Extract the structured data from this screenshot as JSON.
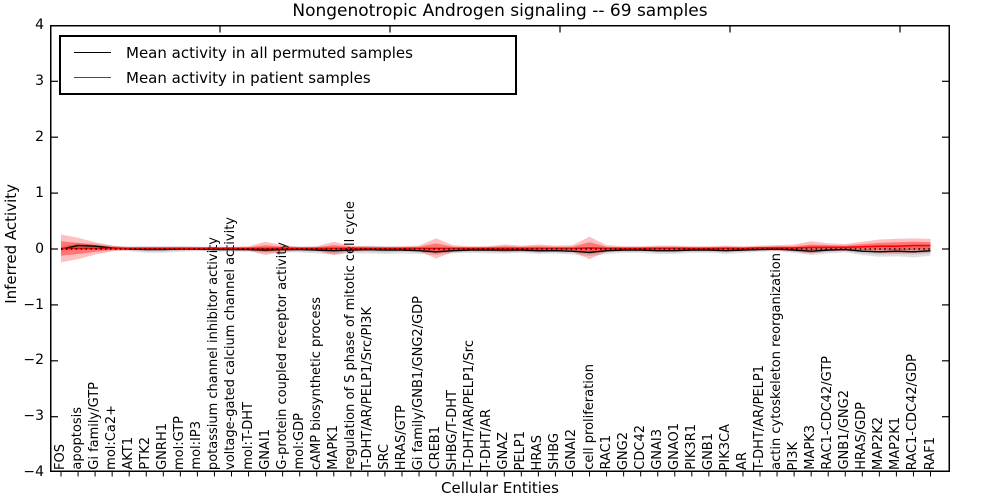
{
  "title": "Nongenotropic Androgen signaling -- 69 samples",
  "axes": {
    "xlabel": "Cellular Entities",
    "ylabel": "Inferred Activity",
    "ytick_labels": [
      "4",
      "3",
      "2",
      "1",
      "0",
      "−1",
      "−2",
      "−3",
      "−4"
    ],
    "ylim": [
      -4,
      4
    ]
  },
  "legend": {
    "entries": [
      {
        "label": "Mean activity in all permuted samples",
        "color": "#000000"
      },
      {
        "label": "Mean activity in patient samples",
        "color": "#ff0000"
      }
    ]
  },
  "colors": {
    "permuted_line": "#000000",
    "patient_line": "#ff0000",
    "zero_line": "#000000",
    "permuted_band_outer": "rgba(0,0,0,0.12)",
    "permuted_band_inner": "rgba(0,0,0,0.11)",
    "patient_band_outer": "rgba(255,0,0,0.25)",
    "patient_band_inner": "rgba(255,0,0,0.38)"
  },
  "chart_data": {
    "type": "line",
    "title": "Nongenotropic Androgen signaling -- 69 samples",
    "xlabel": "Cellular Entities",
    "ylabel": "Inferred Activity",
    "ylim": [
      -4,
      4
    ],
    "grid": false,
    "legend_position": "upper left",
    "zero_line": true,
    "categories": [
      "FOS",
      "apoptosis",
      "Gi family/GTP",
      "mol:Ca2+",
      "AKT1",
      "PTK2",
      "GNRH1",
      "mol:GTP",
      "mol:IP3",
      "potassium channel inhibitor activity",
      "voltage-gated calcium channel activity",
      "mol:T-DHT",
      "GNAI1",
      "G-protein coupled receptor activity",
      "mol:GDP",
      "cAMP biosynthetic process",
      "MAPK1",
      "regulation of S phase of mitotic cell cycle",
      "T-DHT/AR/PELP1/Src/PI3K",
      "SRC",
      "HRAS/GTP",
      "Gi family/GNB1/GNG2/GDP",
      "CREB1",
      "SHBG/T-DHT",
      "T-DHT/AR/PELP1/Src",
      "T-DHT/AR",
      "GNAZ",
      "PELP1",
      "HRAS",
      "SHBG",
      "GNAI2",
      "cell proliferation",
      "RAC1",
      "GNG2",
      "CDC42",
      "GNAI3",
      "GNAO1",
      "PIK3R1",
      "GNB1",
      "PIK3CA",
      "AR",
      "T-DHT/AR/PELP1",
      "actin cytoskeleton reorganization",
      "PI3K",
      "MAPK3",
      "RAC1-CDC42/GTP",
      "GNB1/GNG2",
      "HRAS/GDP",
      "MAP2K2",
      "MAP2K1",
      "RAC1-CDC42/GDP",
      "RAF1"
    ],
    "series": [
      {
        "name": "Mean activity in all permuted samples",
        "color": "#000000",
        "values": [
          0.0,
          0.06,
          0.05,
          0.02,
          0.0,
          -0.01,
          -0.01,
          0.0,
          0.0,
          -0.01,
          -0.01,
          -0.01,
          -0.02,
          -0.01,
          -0.01,
          -0.02,
          -0.03,
          -0.02,
          -0.01,
          -0.02,
          -0.02,
          -0.03,
          -0.05,
          -0.03,
          -0.02,
          -0.02,
          -0.02,
          -0.02,
          -0.03,
          -0.03,
          -0.04,
          -0.06,
          -0.03,
          -0.02,
          -0.02,
          -0.03,
          -0.03,
          -0.02,
          -0.02,
          -0.03,
          -0.02,
          -0.01,
          0.0,
          -0.02,
          -0.04,
          -0.02,
          -0.01,
          -0.04,
          -0.05,
          -0.04,
          -0.05,
          -0.03
        ],
        "band_outer_halfwidth": [
          0.04,
          0.05,
          0.05,
          0.04,
          0.04,
          0.06,
          0.06,
          0.05,
          0.04,
          0.04,
          0.04,
          0.04,
          0.05,
          0.05,
          0.05,
          0.06,
          0.07,
          0.06,
          0.07,
          0.07,
          0.06,
          0.06,
          0.06,
          0.05,
          0.05,
          0.06,
          0.06,
          0.05,
          0.06,
          0.05,
          0.06,
          0.07,
          0.06,
          0.05,
          0.05,
          0.06,
          0.06,
          0.05,
          0.05,
          0.06,
          0.05,
          0.04,
          0.04,
          0.05,
          0.07,
          0.06,
          0.05,
          0.07,
          0.09,
          0.09,
          0.1,
          0.09
        ],
        "band_inner_halfwidth": [
          0.02,
          0.03,
          0.03,
          0.02,
          0.02,
          0.03,
          0.03,
          0.03,
          0.02,
          0.02,
          0.02,
          0.02,
          0.03,
          0.03,
          0.03,
          0.03,
          0.04,
          0.03,
          0.04,
          0.04,
          0.03,
          0.03,
          0.03,
          0.03,
          0.03,
          0.03,
          0.03,
          0.03,
          0.03,
          0.03,
          0.03,
          0.04,
          0.03,
          0.03,
          0.03,
          0.03,
          0.03,
          0.03,
          0.03,
          0.03,
          0.03,
          0.02,
          0.02,
          0.03,
          0.04,
          0.03,
          0.03,
          0.04,
          0.05,
          0.05,
          0.05,
          0.05
        ]
      },
      {
        "name": "Mean activity in patient samples",
        "color": "#ff0000",
        "values": [
          0.01,
          0.01,
          0.01,
          0.01,
          0.01,
          0.01,
          0.01,
          0.01,
          0.01,
          0.01,
          0.01,
          0.01,
          0.01,
          0.01,
          0.01,
          0.01,
          0.01,
          0.01,
          0.01,
          0.01,
          0.01,
          0.01,
          0.01,
          0.01,
          0.01,
          0.01,
          0.01,
          0.01,
          0.01,
          0.01,
          0.01,
          0.02,
          0.01,
          0.01,
          0.01,
          0.01,
          0.01,
          0.01,
          0.01,
          0.01,
          0.01,
          0.02,
          0.02,
          0.02,
          0.03,
          0.03,
          0.03,
          0.04,
          0.05,
          0.05,
          0.06,
          0.06
        ],
        "band_outer_halfwidth": [
          0.25,
          0.19,
          0.11,
          0.05,
          0.03,
          0.03,
          0.03,
          0.03,
          0.03,
          0.03,
          0.03,
          0.04,
          0.12,
          0.06,
          0.03,
          0.04,
          0.12,
          0.05,
          0.04,
          0.03,
          0.04,
          0.05,
          0.18,
          0.06,
          0.04,
          0.04,
          0.07,
          0.05,
          0.07,
          0.05,
          0.06,
          0.2,
          0.06,
          0.04,
          0.04,
          0.05,
          0.05,
          0.04,
          0.04,
          0.05,
          0.04,
          0.04,
          0.05,
          0.06,
          0.11,
          0.07,
          0.06,
          0.09,
          0.12,
          0.13,
          0.13,
          0.12
        ],
        "band_inner_halfwidth": [
          0.13,
          0.1,
          0.06,
          0.03,
          0.02,
          0.02,
          0.02,
          0.02,
          0.02,
          0.02,
          0.02,
          0.02,
          0.06,
          0.03,
          0.02,
          0.02,
          0.06,
          0.03,
          0.02,
          0.02,
          0.02,
          0.03,
          0.09,
          0.03,
          0.02,
          0.02,
          0.04,
          0.03,
          0.04,
          0.03,
          0.03,
          0.1,
          0.03,
          0.02,
          0.02,
          0.03,
          0.03,
          0.02,
          0.02,
          0.03,
          0.02,
          0.02,
          0.03,
          0.03,
          0.05,
          0.04,
          0.03,
          0.05,
          0.06,
          0.07,
          0.07,
          0.06
        ]
      }
    ]
  }
}
